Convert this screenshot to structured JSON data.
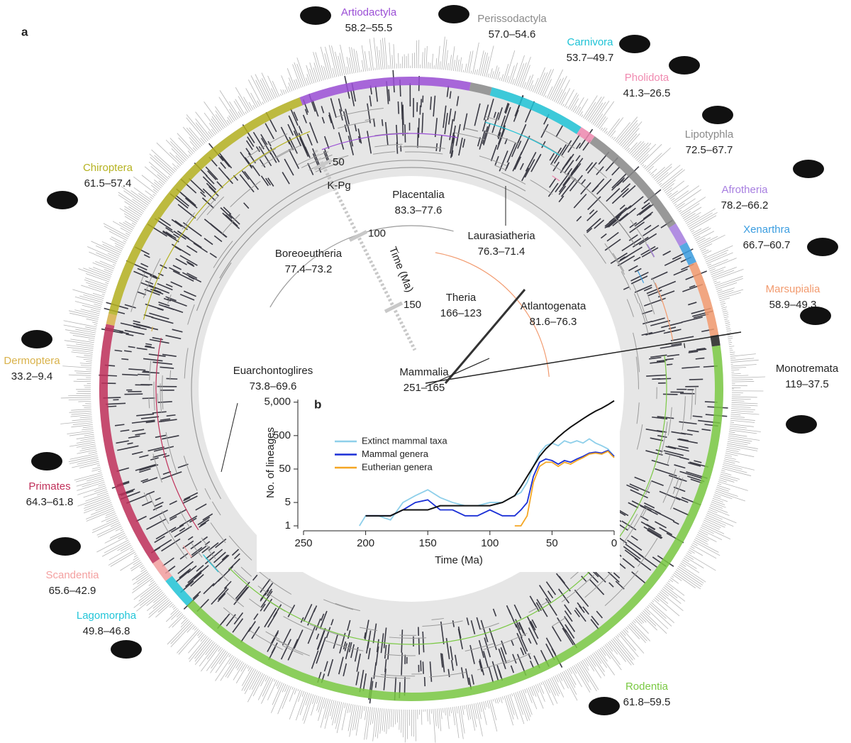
{
  "panel_a": {
    "label": "a",
    "clades": [
      {
        "name": "Artiodactyla",
        "range": "58.2–55.5",
        "color": "#9b4fd6"
      },
      {
        "name": "Perissodactyla",
        "range": "57.0–54.6",
        "color": "#8a8a8a"
      },
      {
        "name": "Carnivora",
        "range": "53.7–49.7",
        "color": "#1ec3d6"
      },
      {
        "name": "Pholidota",
        "range": "41.3–26.5",
        "color": "#f08ab0"
      },
      {
        "name": "Lipotyphla",
        "range": "72.5–67.7",
        "color": "#8a8a8a"
      },
      {
        "name": "Afrotheria",
        "range": "78.2–66.2",
        "color": "#a77ee0"
      },
      {
        "name": "Xenarthra",
        "range": "66.7–60.7",
        "color": "#3b9de0"
      },
      {
        "name": "Marsupialia",
        "range": "58.9–49.3",
        "color": "#f29a6e"
      },
      {
        "name": "Monotremata",
        "range": "119–37.5",
        "color": "#222222"
      },
      {
        "name": "Rodentia",
        "range": "61.8–59.5",
        "color": "#7ac943"
      },
      {
        "name": "Lagomorpha",
        "range": "49.8–46.8",
        "color": "#22c5d8"
      },
      {
        "name": "Scandentia",
        "range": "65.6–42.9",
        "color": "#f4a0a0"
      },
      {
        "name": "Primates",
        "range": "64.3–61.8",
        "color": "#c0305a"
      },
      {
        "name": "Dermoptera",
        "range": "33.2–9.4",
        "color": "#d9b24a"
      },
      {
        "name": "Chiroptera",
        "range": "61.5–57.4",
        "color": "#b5b221"
      }
    ],
    "nodes": [
      {
        "name": "Placentalia",
        "range": "83.3–77.6"
      },
      {
        "name": "Boreoeutheria",
        "range": "77.4–73.2"
      },
      {
        "name": "Laurasiatheria",
        "range": "76.3–71.4"
      },
      {
        "name": "Euarchontoglires",
        "range": "73.8–69.6"
      },
      {
        "name": "Theria",
        "range": "166–123"
      },
      {
        "name": "Atlantogenata",
        "range": "81.6–76.3"
      },
      {
        "name": "Mammalia",
        "range": "251–165"
      }
    ],
    "time_axis": {
      "ticks": [
        50,
        100,
        150
      ],
      "event": "K-Pg",
      "label": "Time (Ma)"
    }
  },
  "chart_data": {
    "type": "line",
    "panel_label": "b",
    "x_label": "Time (Ma)",
    "y_label": "No. of lineages",
    "log_y": true,
    "xlim": [
      250,
      0
    ],
    "xticks": [
      250,
      200,
      150,
      100,
      50,
      0
    ],
    "ylim": [
      1,
      6000
    ],
    "yticks": [
      1,
      5,
      50,
      500,
      {
        "value": 5000,
        "label": "5,000"
      }
    ],
    "x": [
      205,
      200,
      190,
      180,
      170,
      160,
      150,
      140,
      130,
      120,
      110,
      100,
      90,
      80,
      75,
      70,
      65,
      60,
      55,
      50,
      45,
      40,
      35,
      30,
      25,
      20,
      15,
      10,
      5,
      0
    ],
    "series": [
      {
        "name": "Extinct mammal taxa",
        "color": "#8ecfea",
        "values": [
          1,
          2,
          2,
          1.5,
          5,
          8,
          12,
          7,
          5,
          4,
          4,
          5,
          5,
          8,
          10,
          20,
          60,
          150,
          250,
          300,
          250,
          350,
          300,
          350,
          300,
          400,
          300,
          250,
          200,
          120
        ]
      },
      {
        "name": "Mammal genera",
        "color": "#1a2fd6",
        "values": [
          null,
          2,
          2,
          2,
          3,
          5,
          6,
          3,
          3,
          2,
          2,
          3,
          2,
          2,
          3,
          5,
          30,
          80,
          100,
          90,
          70,
          90,
          80,
          100,
          120,
          150,
          160,
          150,
          180,
          120
        ]
      },
      {
        "name": "Eutherian genera",
        "color": "#f5a623",
        "values": [
          null,
          null,
          null,
          null,
          null,
          null,
          null,
          null,
          null,
          null,
          null,
          null,
          null,
          1,
          1,
          2,
          20,
          60,
          80,
          80,
          60,
          80,
          70,
          90,
          110,
          140,
          150,
          140,
          170,
          110
        ]
      },
      {
        "color": "#111111",
        "values": [
          null,
          2,
          2,
          2,
          3,
          3,
          3,
          4,
          4,
          4,
          4,
          4,
          5,
          8,
          15,
          30,
          60,
          120,
          200,
          300,
          450,
          650,
          900,
          1200,
          1600,
          2100,
          2700,
          3300,
          4200,
          5500
        ]
      }
    ]
  }
}
